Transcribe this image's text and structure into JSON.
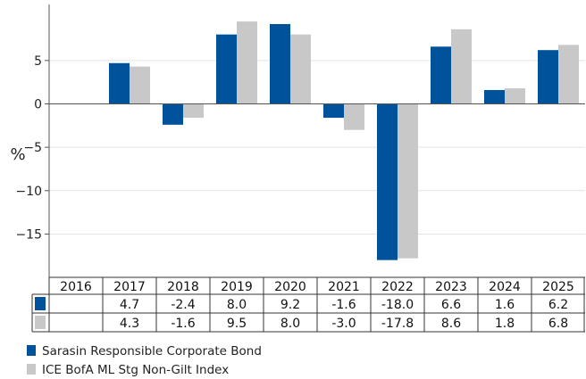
{
  "chart_data": {
    "type": "bar",
    "ylabel": "%",
    "ylim": [
      -19,
      11
    ],
    "yticks": [
      -15,
      -10,
      -5,
      0,
      5
    ],
    "ytick_labels": [
      "−15",
      "−10",
      "−5",
      "0",
      "5"
    ],
    "categories": [
      "2016",
      "2017",
      "2018",
      "2019",
      "2020",
      "2021",
      "2022",
      "2023",
      "2024",
      "2025"
    ],
    "series": [
      {
        "name": "Sarasin Responsible Corporate Bond",
        "color": "#00539b",
        "values": [
          null,
          4.7,
          -2.4,
          8.0,
          9.2,
          -1.6,
          -18.0,
          6.6,
          1.6,
          6.2
        ],
        "labels": [
          "",
          "4.7",
          "-2.4",
          "8.0",
          "9.2",
          "-1.6",
          "-18.0",
          "6.6",
          "1.6",
          "6.2"
        ]
      },
      {
        "name": "ICE BofA ML Stg Non-Gilt Index",
        "color": "#c8c8c8",
        "values": [
          null,
          4.3,
          -1.6,
          9.5,
          8.0,
          -3.0,
          -17.8,
          8.6,
          1.8,
          6.8
        ],
        "labels": [
          "",
          "4.3",
          "-1.6",
          "9.5",
          "8.0",
          "-3.0",
          "-17.8",
          "8.6",
          "1.8",
          "6.8"
        ]
      }
    ],
    "grid": true,
    "legend_position": "bottom-left"
  }
}
